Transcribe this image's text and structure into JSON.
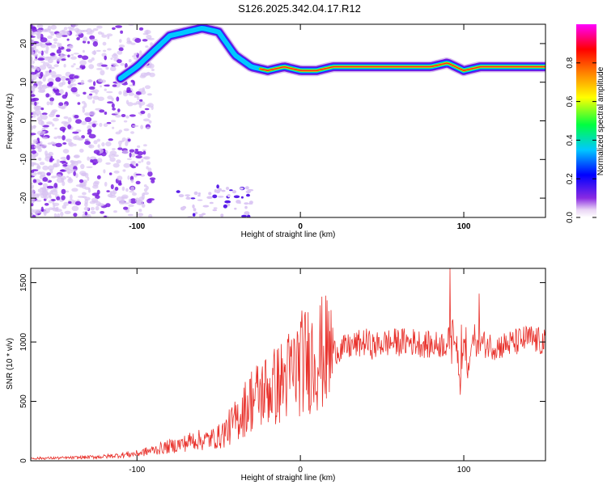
{
  "title": "S126.2025.342.04.17.R12",
  "chart_data": [
    {
      "type": "heatmap",
      "name": "spectrogram",
      "xlabel": "Height of straight line (km)",
      "ylabel": "Frequency (Hz)",
      "xlim": [
        -165,
        150
      ],
      "ylim": [
        -25,
        25
      ],
      "xticks": [
        -100,
        0,
        100
      ],
      "yticks": [
        -20,
        -10,
        0,
        10,
        20
      ],
      "colorbar": {
        "label": "Normalized spectral amplitude",
        "range": [
          0.0,
          1.0
        ],
        "ticks": [
          0.0,
          0.2,
          0.4,
          0.6,
          0.8
        ],
        "tick_labels": [
          "0.0",
          "0.2",
          "0.4",
          "0.6",
          "0.8"
        ],
        "colors": [
          "#ffffff",
          "#e0d0f0",
          "#8a2be2",
          "#0000ff",
          "#00c8ff",
          "#00ff40",
          "#ffff00",
          "#ff8000",
          "#ff0000",
          "#ff00ff"
        ]
      },
      "signal_ridge": {
        "x": [
          -110,
          -100,
          -90,
          -80,
          -70,
          -60,
          -50,
          -40,
          -30,
          -20,
          -10,
          0,
          10,
          20,
          40,
          60,
          80,
          90,
          100,
          110,
          130,
          150
        ],
        "y": [
          11,
          14,
          18,
          22,
          23,
          24,
          23,
          17,
          14,
          13,
          14,
          13,
          13,
          14,
          14,
          14,
          14,
          15,
          13,
          14,
          14,
          14
        ]
      }
    },
    {
      "type": "line",
      "name": "snr",
      "xlabel": "Height of straight line (km)",
      "ylabel": "SNR (10 * v/v)",
      "xlim": [
        -165,
        150
      ],
      "ylim": [
        0,
        1620
      ],
      "xticks": [
        -100,
        0,
        100
      ],
      "yticks": [
        0,
        500,
        1000,
        1500
      ],
      "color": "#e8302a",
      "x": [
        -165,
        -140,
        -120,
        -100,
        -90,
        -80,
        -70,
        -65,
        -60,
        -50,
        -45,
        -40,
        -35,
        -30,
        -25,
        -20,
        -15,
        -10,
        -5,
        0,
        5,
        10,
        20,
        30,
        40,
        45,
        50,
        60,
        70,
        80,
        90,
        95,
        98,
        100,
        102,
        105,
        110,
        120,
        130,
        140,
        150
      ],
      "y": [
        20,
        25,
        35,
        60,
        90,
        120,
        150,
        180,
        170,
        200,
        260,
        330,
        420,
        520,
        560,
        600,
        630,
        680,
        750,
        820,
        860,
        890,
        920,
        960,
        1000,
        960,
        990,
        1000,
        1000,
        970,
        990,
        1100,
        600,
        1050,
        700,
        1000,
        990,
        960,
        990,
        1030,
        990
      ]
    }
  ]
}
